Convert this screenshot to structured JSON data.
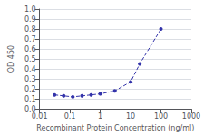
{
  "chart_data": {
    "type": "line",
    "xlabel": "Recombinant Protein Concentration (ng/ml)",
    "ylabel": "OD 450",
    "x": [
      0.03125,
      0.0625,
      0.125,
      0.25,
      0.5,
      1.0,
      3.0,
      10.0,
      20.0,
      100.0
    ],
    "values": [
      0.14,
      0.13,
      0.12,
      0.13,
      0.14,
      0.15,
      0.18,
      0.27,
      0.45,
      0.8
    ],
    "color": "#3333aa",
    "marker": "circle",
    "line_style": "dashed",
    "log": "x",
    "xlim": [
      0.01,
      1000
    ],
    "xticks": [
      0.01,
      0.1,
      1,
      10,
      100,
      1000
    ],
    "ylim": [
      0.0,
      1.0
    ],
    "yticks": [
      {
        "value": 0.0,
        "label": "0.0"
      },
      0.1,
      0.2,
      0.3,
      0.4,
      0.5,
      0.6,
      0.7,
      0.8,
      0.9,
      {
        "value": 1.0,
        "label": "1.0"
      }
    ],
    "grid": true
  }
}
